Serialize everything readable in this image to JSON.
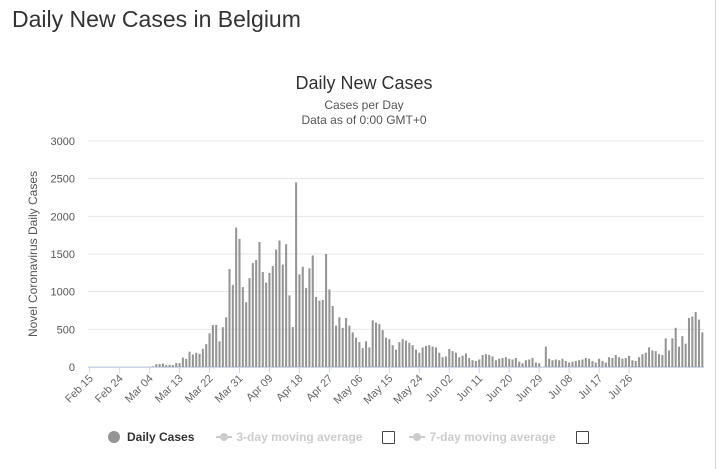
{
  "page": {
    "title": "Daily New Cases in Belgium"
  },
  "legend": {
    "daily_cases": "Daily Cases",
    "avg3": "3-day moving average",
    "avg7": "7-day moving average",
    "bar_color": "#959595",
    "inactive_color": "#cccccc"
  },
  "chart_data": {
    "type": "bar",
    "title": "Daily New Cases",
    "subtitle": "Cases per Day",
    "subtitle2": "Data as of 0:00 GMT+0",
    "xlabel": "",
    "ylabel": "Novel Coronavirus Daily Cases",
    "ylim": [
      0,
      3000
    ],
    "yticks": [
      0,
      500,
      1000,
      1500,
      2000,
      2500,
      3000
    ],
    "grid": true,
    "legend_position": "bottom-left",
    "x_tick_labels": [
      "Feb 15",
      "Feb 24",
      "Mar 04",
      "Mar 13",
      "Mar 22",
      "Mar 31",
      "Apr 09",
      "Apr 18",
      "Apr 27",
      "May 06",
      "May 15",
      "May 24",
      "Jun 02",
      "Jun 11",
      "Jun 20",
      "Jun 29",
      "Jul 08",
      "Jul 17",
      "Jul 26"
    ],
    "x_tick_interval_days": 9,
    "start_date": "Feb 15",
    "series": [
      {
        "name": "Daily Cases",
        "values": [
          0,
          0,
          0,
          0,
          0,
          0,
          0,
          0,
          0,
          0,
          0,
          0,
          0,
          0,
          0,
          0,
          0,
          1,
          6,
          10,
          37,
          40,
          46,
          25,
          29,
          25,
          54,
          52,
          125,
          107,
          203,
          165,
          190,
          176,
          242,
          304,
          447,
          558,
          560,
          341,
          529,
          660,
          1300,
          1090,
          1850,
          1700,
          1060,
          860,
          1180,
          1380,
          1420,
          1660,
          1260,
          1120,
          1250,
          1340,
          1560,
          1680,
          1360,
          1630,
          950,
          530,
          2450,
          1230,
          1330,
          1050,
          1310,
          1480,
          930,
          880,
          890,
          1500,
          1030,
          810,
          550,
          660,
          520,
          650,
          550,
          460,
          390,
          330,
          250,
          340,
          260,
          620,
          590,
          570,
          490,
          390,
          370,
          290,
          230,
          330,
          370,
          350,
          320,
          290,
          230,
          190,
          260,
          280,
          290,
          270,
          260,
          190,
          130,
          140,
          240,
          210,
          190,
          130,
          150,
          180,
          120,
          90,
          80,
          100,
          160,
          170,
          160,
          140,
          90,
          110,
          120,
          130,
          110,
          100,
          120,
          70,
          50,
          90,
          100,
          120,
          60,
          50,
          0,
          270,
          110,
          90,
          100,
          90,
          110,
          80,
          60,
          70,
          80,
          90,
          100,
          120,
          110,
          80,
          60,
          110,
          80,
          60,
          130,
          120,
          160,
          130,
          110,
          120,
          150,
          90,
          80,
          130,
          170,
          190,
          260,
          220,
          210,
          170,
          160,
          380,
          220,
          380,
          520,
          270,
          410,
          310,
          650,
          670,
          730,
          630,
          460
        ]
      }
    ]
  }
}
